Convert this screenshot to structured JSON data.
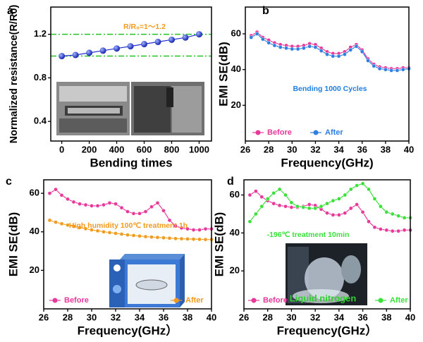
{
  "chart_data": [
    {
      "type": "line",
      "panel": "a",
      "x_label": "Bending times",
      "y_label": "Normalized resistance(R/R0)",
      "x": [
        0,
        100,
        200,
        300,
        400,
        500,
        600,
        700,
        800,
        900,
        1000
      ],
      "series": [
        {
          "color": "#1f2fd0",
          "values": [
            1.0,
            1.01,
            1.03,
            1.05,
            1.07,
            1.09,
            1.11,
            1.13,
            1.15,
            1.17,
            1.2
          ]
        }
      ],
      "xlim": [
        -80,
        1090
      ],
      "ylim": [
        0.22,
        1.45
      ],
      "xticks": [
        0,
        200,
        400,
        600,
        800,
        1000
      ],
      "yticks": [
        0.4,
        0.8,
        1.2
      ],
      "reference_lines": [
        1.0,
        1.2
      ],
      "reference_color": "#22c322",
      "annotations": [
        {
          "text": "R/R₀=1～1.2",
          "color": "#f39a1c"
        }
      ]
    },
    {
      "type": "line",
      "panel": "b",
      "x_label": "Frequency(GHz)",
      "y_label": "EMI SE(dB)",
      "legend": "lower",
      "x": [
        26.5,
        27,
        27.5,
        28,
        28.5,
        29,
        29.5,
        30,
        30.5,
        31,
        31.5,
        32,
        32.5,
        33,
        33.5,
        34,
        34.5,
        35,
        35.5,
        36,
        36.5,
        37,
        37.5,
        38,
        38.5,
        39,
        39.5,
        40
      ],
      "series": [
        {
          "name": "Before",
          "color": "#e8399b",
          "values": [
            59,
            61,
            58,
            56.5,
            55,
            54,
            53.5,
            53,
            53,
            53.5,
            54.5,
            54,
            52,
            50,
            49,
            49,
            50,
            52.5,
            54,
            51,
            46,
            43,
            41.5,
            41,
            40.5,
            40.5,
            41,
            41
          ]
        },
        {
          "name": "After",
          "color": "#2f7fe0",
          "values": [
            58,
            60,
            57,
            55,
            53.5,
            52.5,
            52,
            51.5,
            51.5,
            52,
            53,
            52.5,
            50.5,
            48.5,
            47.5,
            47.5,
            48.5,
            51,
            53,
            50,
            45,
            42,
            40.5,
            40,
            39.5,
            39.5,
            40,
            40.5
          ]
        }
      ],
      "xlim": [
        26,
        40
      ],
      "ylim": [
        0,
        75
      ],
      "xticks": [
        26,
        28,
        30,
        32,
        34,
        36,
        38,
        40
      ],
      "yticks": [
        20,
        40,
        60
      ],
      "annotations": [
        {
          "text": "Bending 1000 Cycles",
          "color": "#1e7fe0"
        }
      ]
    },
    {
      "type": "line",
      "panel": "c",
      "x_label": "Frequency(GHz）",
      "y_label": "EMI SE(dB)",
      "legend": "lower",
      "x": [
        26.5,
        27,
        27.5,
        28,
        28.5,
        29,
        29.5,
        30,
        30.5,
        31,
        31.5,
        32,
        32.5,
        33,
        33.5,
        34,
        34.5,
        35,
        35.5,
        36,
        36.5,
        37,
        37.5,
        38,
        38.5,
        39,
        39.5,
        40
      ],
      "series": [
        {
          "name": "Before",
          "color": "#e8399b",
          "values": [
            60,
            62,
            59,
            57,
            55.5,
            54.5,
            54,
            53.5,
            53.5,
            54,
            55,
            54.5,
            52.5,
            50.5,
            49.5,
            49.5,
            50.5,
            53,
            55,
            51,
            46,
            43,
            42,
            41.5,
            41,
            41,
            41.5,
            41.5
          ]
        },
        {
          "name": "After",
          "color": "#f39a1c",
          "values": [
            46,
            45,
            44.2,
            43.5,
            42.8,
            42.2,
            41.6,
            41,
            40.5,
            40,
            39.6,
            39.2,
            38.8,
            38.4,
            38.1,
            37.8,
            37.5,
            37.3,
            37.1,
            36.9,
            36.7,
            36.5,
            36.4,
            36.3,
            36.2,
            36.1,
            36,
            36
          ]
        }
      ],
      "xlim": [
        26,
        40
      ],
      "ylim": [
        0,
        67
      ],
      "xticks": [
        26,
        28,
        30,
        32,
        34,
        36,
        38,
        40
      ],
      "yticks": [
        20,
        40,
        60
      ],
      "annotations": [
        {
          "text": "High humidity 100℃ treatment 1h",
          "color": "#f39a1c"
        }
      ]
    },
    {
      "type": "line",
      "panel": "d",
      "x_label": "Frequency(GHz）",
      "y_label": "EMI SE(dB)",
      "legend": "lower",
      "x": [
        26.5,
        27,
        27.5,
        28,
        28.5,
        29,
        29.5,
        30,
        30.5,
        31,
        31.5,
        32,
        32.5,
        33,
        33.5,
        34,
        34.5,
        35,
        35.5,
        36,
        36.5,
        37,
        37.5,
        38,
        38.5,
        39,
        39.5,
        40
      ],
      "series": [
        {
          "name": "Before",
          "color": "#e8399b",
          "values": [
            60,
            62,
            59,
            57,
            55.5,
            54.5,
            54,
            53.5,
            53.5,
            54,
            55,
            54.5,
            52.5,
            50.5,
            49.5,
            49.5,
            50.5,
            53,
            55,
            51,
            46,
            43,
            42,
            41.5,
            41,
            41,
            41.5,
            41.5
          ]
        },
        {
          "name": "After",
          "color": "#3be03b",
          "values": [
            46,
            50,
            54,
            58,
            61,
            63,
            60,
            56,
            54,
            53.5,
            53,
            53,
            54,
            55.5,
            57,
            58,
            60,
            63,
            65,
            66,
            63,
            58,
            54,
            51,
            50,
            49,
            48,
            48
          ]
        }
      ],
      "xlim": [
        26,
        40
      ],
      "ylim": [
        0,
        68
      ],
      "xticks": [
        26,
        28,
        30,
        32,
        34,
        36,
        38,
        40
      ],
      "yticks": [
        20,
        40,
        60
      ],
      "annotations": [
        {
          "text": "-196℃ treatment 10min",
          "color": "#3be03b"
        },
        {
          "text": "Liquid nitrogen",
          "color": "#2fd02f"
        }
      ]
    }
  ]
}
